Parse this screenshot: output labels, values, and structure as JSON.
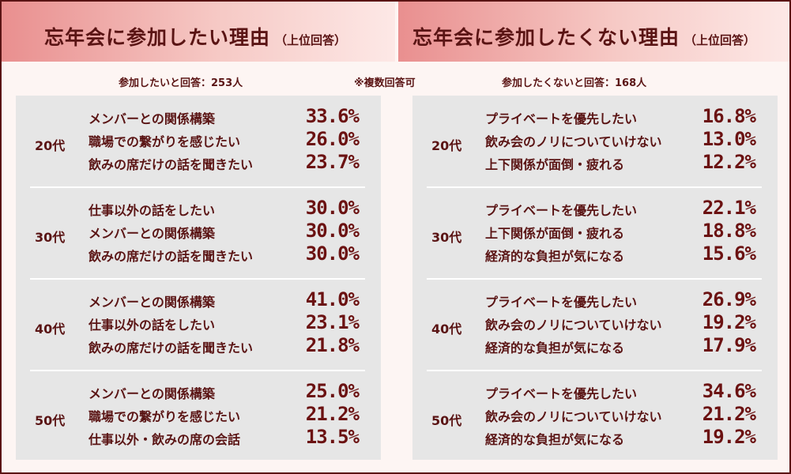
{
  "left": {
    "title": "忘年会に参加したい理由",
    "subtitle": "（上位回答）",
    "respondents": "参加したいと回答：253人",
    "groups": [
      {
        "age": "20代",
        "rows": [
          {
            "reason": "メンバーとの関係構築",
            "pct": "33.6%"
          },
          {
            "reason": "職場での繋がりを感じたい",
            "pct": "26.0%"
          },
          {
            "reason": "飲みの席だけの話を聞きたい",
            "pct": "23.7%"
          }
        ]
      },
      {
        "age": "30代",
        "rows": [
          {
            "reason": "仕事以外の話をしたい",
            "pct": "30.0%"
          },
          {
            "reason": "メンバーとの関係構築",
            "pct": "30.0%"
          },
          {
            "reason": "飲みの席だけの話を聞きたい",
            "pct": "30.0%"
          }
        ]
      },
      {
        "age": "40代",
        "rows": [
          {
            "reason": "メンバーとの関係構築",
            "pct": "41.0%"
          },
          {
            "reason": "仕事以外の話をしたい",
            "pct": "23.1%"
          },
          {
            "reason": "飲みの席だけの話を聞きたい",
            "pct": "21.8%"
          }
        ]
      },
      {
        "age": "50代",
        "rows": [
          {
            "reason": "メンバーとの関係構築",
            "pct": "25.0%"
          },
          {
            "reason": "職場での繋がりを感じたい",
            "pct": "21.2%"
          },
          {
            "reason": "仕事以外・飲みの席の会話",
            "pct": "13.5%"
          }
        ]
      }
    ]
  },
  "note": "※複数回答可",
  "right": {
    "title": "忘年会に参加したくない理由",
    "subtitle": "（上位回答）",
    "respondents": "参加したくないと回答：168人",
    "groups": [
      {
        "age": "20代",
        "rows": [
          {
            "reason": "プライベートを優先したい",
            "pct": "16.8%"
          },
          {
            "reason": "飲み会のノリについていけない",
            "pct": "13.0%"
          },
          {
            "reason": "上下関係が面倒・疲れる",
            "pct": "12.2%"
          }
        ]
      },
      {
        "age": "30代",
        "rows": [
          {
            "reason": "プライベートを優先したい",
            "pct": "22.1%"
          },
          {
            "reason": "上下関係が面倒・疲れる",
            "pct": "18.8%"
          },
          {
            "reason": "経済的な負担が気になる",
            "pct": "15.6%"
          }
        ]
      },
      {
        "age": "40代",
        "rows": [
          {
            "reason": "プライベートを優先したい",
            "pct": "26.9%"
          },
          {
            "reason": "飲み会のノリについていけない",
            "pct": "19.2%"
          },
          {
            "reason": "経済的な負担が気になる",
            "pct": "17.9%"
          }
        ]
      },
      {
        "age": "50代",
        "rows": [
          {
            "reason": "プライベートを優先したい",
            "pct": "34.6%"
          },
          {
            "reason": "飲み会のノリについていけない",
            "pct": "21.2%"
          },
          {
            "reason": "経済的な負担が気になる",
            "pct": "19.2%"
          }
        ]
      }
    ]
  },
  "colors": {
    "text": "#5a1414",
    "header_start": "#e98f8f",
    "header_end": "#fde8e6",
    "panel": "#e6e6e6",
    "background": "#fdf5f3"
  }
}
